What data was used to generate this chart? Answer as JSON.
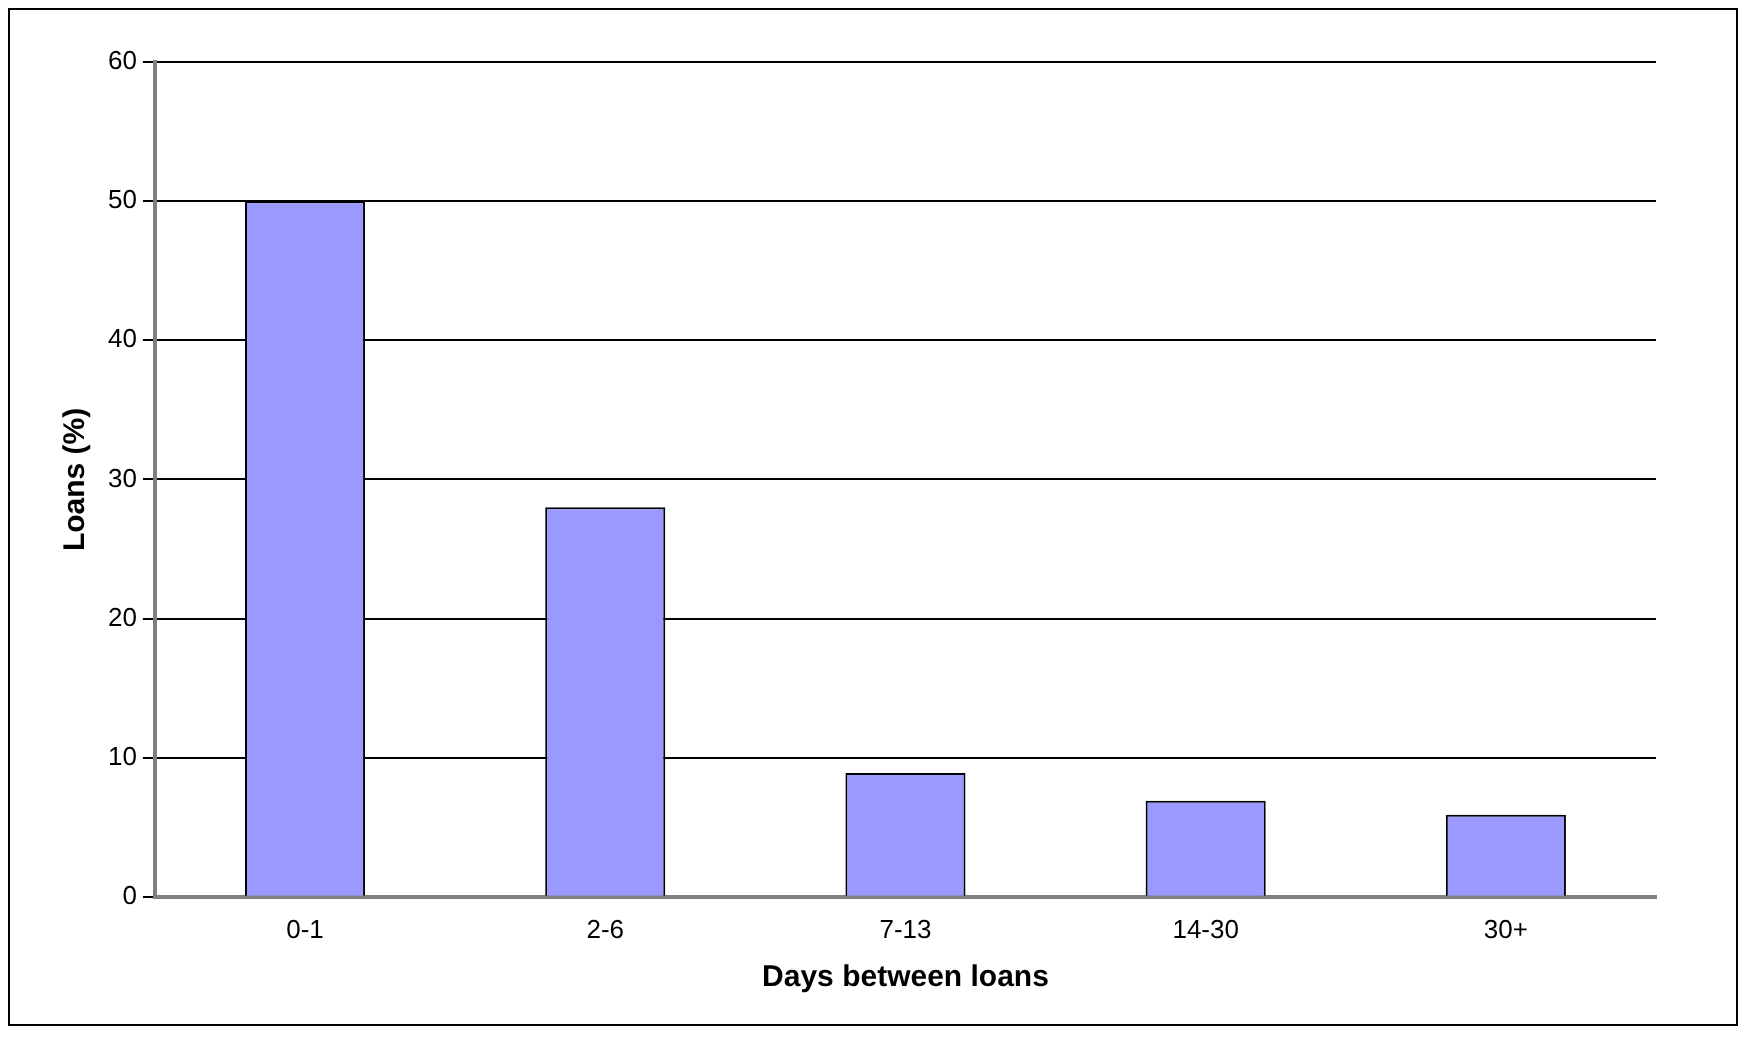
{
  "chart_data": {
    "type": "bar",
    "xlabel": "Days between loans",
    "ylabel": "Loans (%)",
    "categories": [
      "0-1",
      "2-6",
      "7-13",
      "14-30",
      "30+"
    ],
    "values": [
      50,
      28,
      8.9,
      6.9,
      5.9
    ],
    "color": "#9999ff",
    "ylim": [
      0,
      60
    ],
    "yticks": [
      0,
      10,
      20,
      30,
      40,
      50,
      60
    ],
    "grid": "y",
    "legend": false
  }
}
